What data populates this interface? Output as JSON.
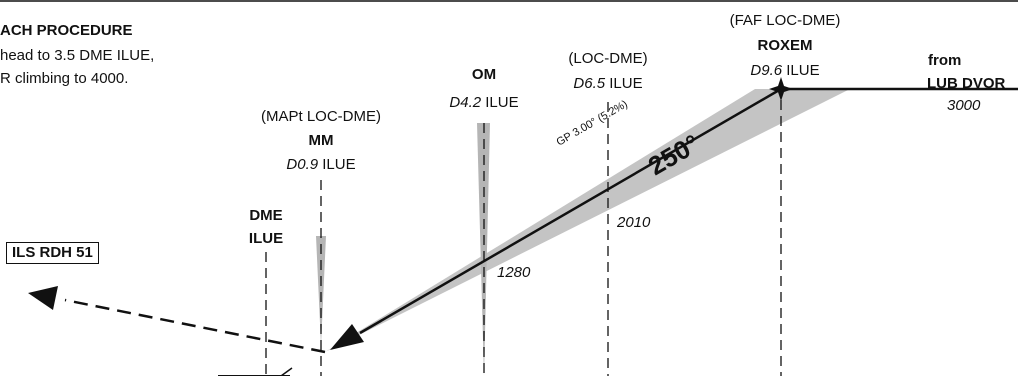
{
  "missed_approach": {
    "title": "ACH PROCEDURE",
    "line1": "head to 3.5 DME ILUE,",
    "line2": "R climbing to 4000."
  },
  "rdh_box": "ILS RDH 51",
  "dme_ilue": {
    "line1": "DME",
    "line2": "ILUE"
  },
  "mapt": {
    "title": "(MAPt LOC-DME)",
    "name": "MM",
    "dist": "D0.9",
    "ident": " ILUE"
  },
  "om": {
    "name": "OM",
    "dist": "D4.2",
    "ident": " ILUE",
    "alt": "1280"
  },
  "loc_dme": {
    "title": "(LOC-DME)",
    "dist": "D6.5",
    "ident": " ILUE",
    "alt": "2010"
  },
  "faf": {
    "title": "(FAF LOC-DME)",
    "name": "ROXEM",
    "dist": "D9.6",
    "ident": " ILUE"
  },
  "from": {
    "word": "from",
    "name": "LUB DVOR",
    "alt": "3000"
  },
  "glidepath": {
    "label": "GP 3.00° (5.2%)",
    "course": "250°"
  },
  "colors": {
    "cone": "#c4c4c4",
    "ink": "#111111"
  }
}
